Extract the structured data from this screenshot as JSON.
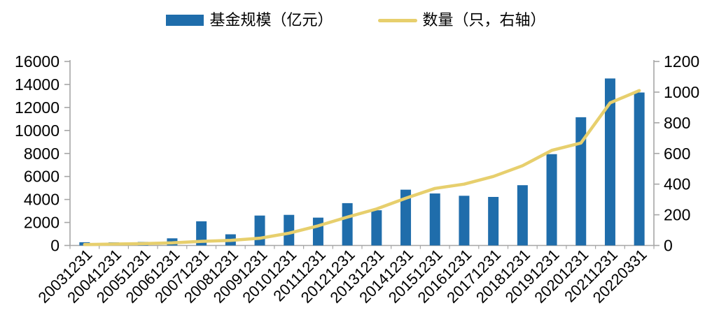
{
  "legend": [
    {
      "label": "基金规模（亿元）",
      "type": "bar"
    },
    {
      "label": "数量（只，右轴）",
      "type": "line"
    }
  ],
  "chart_data": {
    "type": "bar",
    "subtype": "bar-line-combo",
    "categories": [
      "20031231",
      "20041231",
      "20051231",
      "20061231",
      "20071231",
      "20081231",
      "20091231",
      "20101231",
      "20111231",
      "20121231",
      "20131231",
      "20141231",
      "20151231",
      "20161231",
      "20171231",
      "20181231",
      "20191231",
      "20201231",
      "20211231",
      "20220331"
    ],
    "series": [
      {
        "name": "基金规模（亿元）",
        "type": "bar",
        "axis": "left",
        "color": "#1F6DAB",
        "values": [
          280,
          270,
          310,
          620,
          2100,
          970,
          2600,
          2660,
          2420,
          3680,
          3060,
          4850,
          4520,
          4320,
          4220,
          5240,
          7940,
          11150,
          14520,
          13300
        ]
      },
      {
        "name": "数量（只，右轴）",
        "type": "line",
        "axis": "right",
        "color": "#E7CF6D",
        "values": [
          6,
          9,
          12,
          17,
          27,
          33,
          47,
          80,
          128,
          185,
          238,
          308,
          372,
          400,
          450,
          520,
          620,
          668,
          930,
          1010
        ]
      }
    ],
    "left_axis": {
      "min": 0,
      "max": 16000,
      "step": 2000,
      "tick_labels": [
        "0",
        "2000",
        "4000",
        "6000",
        "8000",
        "10000",
        "12000",
        "14000",
        "16000"
      ]
    },
    "right_axis": {
      "min": 0,
      "max": 1200,
      "step": 200,
      "tick_labels": [
        "0",
        "200",
        "400",
        "600",
        "800",
        "1000",
        "1200"
      ]
    },
    "grid": false,
    "legend_position": "top-center",
    "axis_color": "#A6A6A6",
    "text_color": "#000000",
    "xlabel": "",
    "ylabel": ""
  }
}
